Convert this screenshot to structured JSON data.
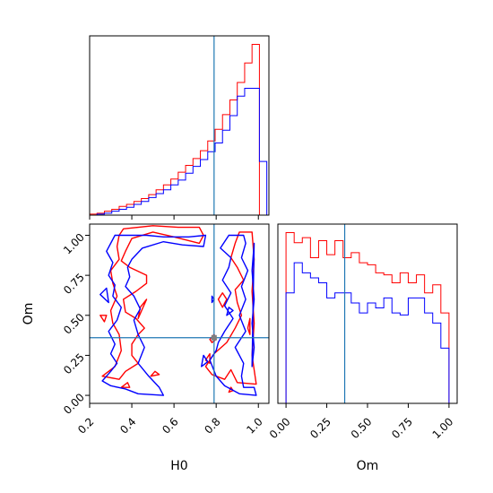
{
  "chart_data": [
    {
      "panel": "H0 marginal",
      "type": "bar",
      "style": "step histogram",
      "xlim": [
        0.2,
        1.05
      ],
      "yticks": "none",
      "truth": 0.79,
      "colors": {
        "series_1": "#ff0000",
        "series_2": "#0000ff",
        "truth": "#1f77b4"
      },
      "bin_edges": [
        0.2,
        0.235,
        0.27,
        0.305,
        0.34,
        0.375,
        0.41,
        0.445,
        0.48,
        0.515,
        0.55,
        0.585,
        0.62,
        0.655,
        0.69,
        0.725,
        0.76,
        0.795,
        0.83,
        0.865,
        0.9,
        0.935,
        0.97,
        1.005,
        1.04
      ],
      "series": [
        {
          "values": [
            1,
            2,
            4,
            6,
            9,
            11,
            14,
            17,
            21,
            26,
            31,
            37,
            44,
            51,
            58,
            66,
            76,
            88,
            103,
            118,
            136,
            156,
            175,
            0
          ]
        },
        {
          "values": [
            0,
            1,
            2,
            4,
            6,
            8,
            11,
            14,
            18,
            22,
            26,
            31,
            36,
            43,
            50,
            57,
            65,
            74,
            87,
            102,
            122,
            130,
            130,
            55
          ]
        }
      ]
    },
    {
      "panel": "H0 vs Om",
      "type": "scatter",
      "style": "2D density contours",
      "xlabel": "H0",
      "ylabel": "Om",
      "xlim": [
        0.2,
        1.05
      ],
      "ylim": [
        -0.05,
        1.07
      ],
      "xticks": [
        "0.2",
        "0.4",
        "0.6",
        "0.8",
        "1.0"
      ],
      "yticks": [
        "0.00",
        "0.25",
        "0.50",
        "0.75",
        "1.00"
      ],
      "truth": {
        "x": 0.79,
        "y": 0.36
      },
      "colors": {
        "series_1": "#ff0000",
        "series_2": "#0000ff",
        "truth": "#1f77b4",
        "truth_marker": "#7f7f7f"
      },
      "series": [
        {
          "contours": [
            [
              [
                0.36,
                1.04
              ],
              [
                0.5,
                1.06
              ],
              [
                0.62,
                1.05
              ],
              [
                0.72,
                1.05
              ],
              [
                0.74,
                1.0
              ],
              [
                0.72,
                0.95
              ],
              [
                0.6,
                0.99
              ],
              [
                0.5,
                1.02
              ],
              [
                0.4,
                0.98
              ],
              [
                0.37,
                0.9
              ],
              [
                0.35,
                0.84
              ],
              [
                0.39,
                0.8
              ],
              [
                0.47,
                0.75
              ],
              [
                0.47,
                0.7
              ],
              [
                0.42,
                0.65
              ],
              [
                0.36,
                0.6
              ],
              [
                0.37,
                0.52
              ],
              [
                0.42,
                0.48
              ],
              [
                0.46,
                0.42
              ],
              [
                0.43,
                0.38
              ],
              [
                0.4,
                0.32
              ],
              [
                0.4,
                0.25
              ],
              [
                0.43,
                0.2
              ],
              [
                0.37,
                0.15
              ],
              [
                0.34,
                0.1
              ],
              [
                0.26,
                0.12
              ],
              [
                0.32,
                0.18
              ],
              [
                0.35,
                0.28
              ],
              [
                0.34,
                0.38
              ],
              [
                0.31,
                0.45
              ],
              [
                0.3,
                0.53
              ],
              [
                0.33,
                0.62
              ],
              [
                0.31,
                0.7
              ],
              [
                0.3,
                0.78
              ],
              [
                0.34,
                0.85
              ],
              [
                0.33,
                0.93
              ],
              [
                0.34,
                1.0
              ],
              [
                0.36,
                1.04
              ]
            ],
            [
              [
                0.97,
                1.02
              ],
              [
                0.98,
                0.85
              ],
              [
                0.97,
                0.65
              ],
              [
                0.98,
                0.45
              ],
              [
                0.97,
                0.25
              ],
              [
                0.99,
                0.07
              ],
              [
                0.9,
                0.08
              ],
              [
                0.87,
                0.16
              ],
              [
                0.84,
                0.1
              ],
              [
                0.78,
                0.13
              ],
              [
                0.75,
                0.18
              ],
              [
                0.79,
                0.26
              ],
              [
                0.85,
                0.33
              ],
              [
                0.89,
                0.42
              ],
              [
                0.92,
                0.5
              ],
              [
                0.9,
                0.58
              ],
              [
                0.89,
                0.66
              ],
              [
                0.93,
                0.72
              ],
              [
                0.9,
                0.8
              ],
              [
                0.87,
                0.86
              ],
              [
                0.89,
                0.95
              ],
              [
                0.91,
                1.02
              ],
              [
                0.97,
                1.02
              ]
            ],
            [
              [
                0.27,
                0.46
              ],
              [
                0.25,
                0.5
              ],
              [
                0.28,
                0.5
              ],
              [
                0.27,
                0.46
              ]
            ],
            [
              [
                0.35,
                0.05
              ],
              [
                0.39,
                0.05
              ],
              [
                0.38,
                0.08
              ],
              [
                0.35,
                0.05
              ]
            ],
            [
              [
                0.49,
                0.12
              ],
              [
                0.53,
                0.13
              ],
              [
                0.51,
                0.15
              ],
              [
                0.49,
                0.12
              ]
            ],
            [
              [
                0.43,
                0.48
              ],
              [
                0.45,
                0.54
              ],
              [
                0.47,
                0.6
              ],
              [
                0.44,
                0.55
              ],
              [
                0.43,
                0.48
              ]
            ],
            [
              [
                0.81,
                0.6
              ],
              [
                0.83,
                0.64
              ],
              [
                0.85,
                0.6
              ],
              [
                0.83,
                0.55
              ],
              [
                0.81,
                0.6
              ]
            ],
            [
              [
                0.75,
                0.22
              ],
              [
                0.77,
                0.2
              ],
              [
                0.77,
                0.26
              ],
              [
                0.75,
                0.22
              ]
            ],
            [
              [
                0.77,
                0.35
              ],
              [
                0.79,
                0.38
              ],
              [
                0.8,
                0.35
              ],
              [
                0.78,
                0.33
              ],
              [
                0.77,
                0.35
              ]
            ],
            [
              [
                0.86,
                0.02
              ],
              [
                0.88,
                0.03
              ],
              [
                0.87,
                0.05
              ],
              [
                0.86,
                0.02
              ]
            ],
            [
              [
                0.95,
                0.42
              ],
              [
                0.96,
                0.48
              ],
              [
                0.96,
                0.38
              ],
              [
                0.95,
                0.42
              ]
            ]
          ]
        },
        {
          "contours": [
            [
              [
                0.32,
                1.0
              ],
              [
                0.47,
                1.0
              ],
              [
                0.55,
                0.99
              ],
              [
                0.67,
                0.99
              ],
              [
                0.75,
                1.0
              ],
              [
                0.74,
                0.93
              ],
              [
                0.64,
                0.94
              ],
              [
                0.55,
                0.96
              ],
              [
                0.45,
                0.92
              ],
              [
                0.4,
                0.85
              ],
              [
                0.38,
                0.8
              ],
              [
                0.39,
                0.74
              ],
              [
                0.37,
                0.68
              ],
              [
                0.41,
                0.62
              ],
              [
                0.44,
                0.54
              ],
              [
                0.41,
                0.47
              ],
              [
                0.43,
                0.38
              ],
              [
                0.46,
                0.3
              ],
              [
                0.43,
                0.2
              ],
              [
                0.48,
                0.12
              ],
              [
                0.53,
                0.05
              ],
              [
                0.55,
                0.0
              ],
              [
                0.43,
                0.01
              ],
              [
                0.37,
                0.04
              ],
              [
                0.3,
                0.06
              ],
              [
                0.26,
                0.09
              ],
              [
                0.3,
                0.15
              ],
              [
                0.33,
                0.2
              ],
              [
                0.3,
                0.26
              ],
              [
                0.32,
                0.32
              ],
              [
                0.29,
                0.4
              ],
              [
                0.33,
                0.47
              ],
              [
                0.35,
                0.55
              ],
              [
                0.31,
                0.62
              ],
              [
                0.32,
                0.69
              ],
              [
                0.29,
                0.75
              ],
              [
                0.31,
                0.83
              ],
              [
                0.28,
                0.9
              ],
              [
                0.32,
                1.0
              ]
            ],
            [
              [
                0.86,
                1.0
              ],
              [
                0.82,
                0.92
              ],
              [
                0.87,
                0.86
              ],
              [
                0.86,
                0.8
              ],
              [
                0.83,
                0.72
              ],
              [
                0.87,
                0.64
              ],
              [
                0.84,
                0.56
              ],
              [
                0.88,
                0.48
              ],
              [
                0.84,
                0.4
              ],
              [
                0.81,
                0.33
              ],
              [
                0.8,
                0.28
              ],
              [
                0.77,
                0.22
              ],
              [
                0.8,
                0.12
              ],
              [
                0.84,
                0.06
              ],
              [
                0.91,
                0.01
              ],
              [
                0.99,
                0.0
              ],
              [
                0.98,
                0.05
              ],
              [
                0.93,
                0.05
              ],
              [
                0.92,
                0.12
              ],
              [
                0.93,
                0.2
              ],
              [
                0.89,
                0.3
              ],
              [
                0.94,
                0.4
              ],
              [
                0.91,
                0.5
              ],
              [
                0.94,
                0.6
              ],
              [
                0.92,
                0.68
              ],
              [
                0.95,
                0.78
              ],
              [
                0.92,
                0.86
              ],
              [
                0.94,
                0.95
              ],
              [
                0.93,
                1.0
              ],
              [
                0.86,
                1.0
              ]
            ],
            [
              [
                0.25,
                0.63
              ],
              [
                0.29,
                0.58
              ],
              [
                0.28,
                0.67
              ],
              [
                0.25,
                0.63
              ]
            ],
            [
              [
                0.74,
                0.25
              ],
              [
                0.73,
                0.18
              ],
              [
                0.76,
                0.21
              ],
              [
                0.74,
                0.25
              ]
            ],
            [
              [
                0.78,
                0.58
              ],
              [
                0.79,
                0.6
              ],
              [
                0.78,
                0.62
              ],
              [
                0.78,
                0.58
              ]
            ],
            [
              [
                0.85,
                0.5
              ],
              [
                0.88,
                0.53
              ],
              [
                0.86,
                0.55
              ],
              [
                0.85,
                0.5
              ]
            ],
            [
              [
                0.97,
                0.18
              ],
              [
                0.98,
                0.3
              ],
              [
                0.97,
                0.45
              ],
              [
                0.98,
                0.6
              ],
              [
                0.97,
                0.78
              ],
              [
                0.98,
                0.95
              ],
              [
                0.97,
                0.18
              ]
            ]
          ]
        }
      ]
    },
    {
      "panel": "Om marginal",
      "type": "bar",
      "style": "step histogram",
      "xlabel": "Om",
      "xlim": [
        -0.05,
        1.05
      ],
      "xticks": [
        "0.00",
        "0.25",
        "0.50",
        "0.75",
        "1.00"
      ],
      "yticks": "none",
      "truth": 0.36,
      "colors": {
        "series_1": "#ff0000",
        "series_2": "#0000ff",
        "truth": "#1f77b4"
      },
      "bin_edges": [
        0.0,
        0.05,
        0.1,
        0.15,
        0.2,
        0.25,
        0.3,
        0.35,
        0.4,
        0.45,
        0.5,
        0.55,
        0.6,
        0.65,
        0.7,
        0.75,
        0.8,
        0.85,
        0.9,
        0.95,
        1.0
      ],
      "series": [
        {
          "values": [
            170,
            160,
            165,
            145,
            162,
            148,
            162,
            145,
            150,
            140,
            138,
            130,
            128,
            120,
            130,
            120,
            128,
            110,
            118,
            90
          ]
        },
        {
          "values": [
            110,
            140,
            130,
            125,
            120,
            105,
            110,
            110,
            100,
            90,
            100,
            95,
            105,
            90,
            88,
            105,
            105,
            90,
            80,
            55
          ]
        }
      ]
    }
  ]
}
